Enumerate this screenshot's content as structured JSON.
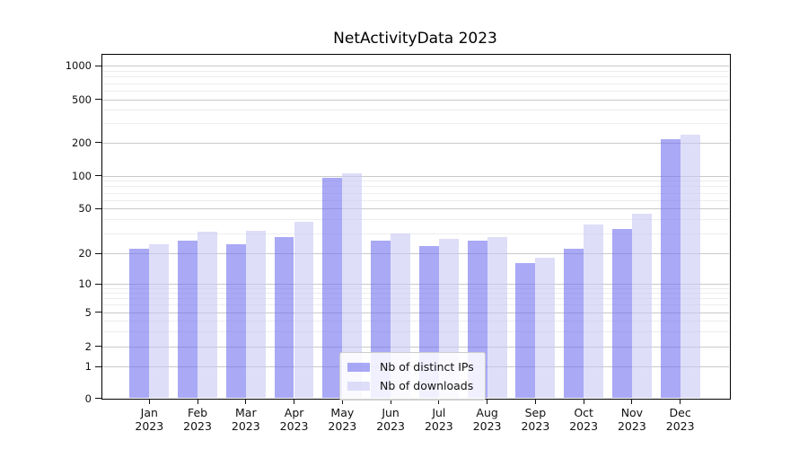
{
  "chart_data": {
    "type": "bar",
    "title": "NetActivityData 2023",
    "categories": [
      "Jan",
      "Feb",
      "Mar",
      "Apr",
      "May",
      "Jun",
      "Jul",
      "Aug",
      "Sep",
      "Oct",
      "Nov",
      "Dec"
    ],
    "category_year_line": "2023",
    "series": [
      {
        "name": "Nb of distinct IPs",
        "color": "#7070f0",
        "values": [
          22,
          26,
          24,
          28,
          95,
          26,
          23,
          26,
          16,
          22,
          33,
          215
        ]
      },
      {
        "name": "Nb of downloads",
        "color": "#c8c8f5",
        "values": [
          24,
          31,
          32,
          38,
          105,
          30,
          27,
          28,
          18,
          36,
          45,
          235
        ]
      }
    ],
    "yscale": "symlog",
    "yticks": [
      0,
      1,
      2,
      5,
      10,
      20,
      50,
      100,
      200,
      500,
      1000
    ],
    "ylim": [
      0,
      1300
    ],
    "xlabel": "",
    "ylabel": "",
    "grid": "major and minor horizontal gridlines",
    "legend_position": "lower center",
    "colors": {
      "major_grid": "#c9c9c9",
      "minor_grid": "#ededed",
      "axis": "#000000",
      "bar_rendered_ips": "#a9a9f6",
      "bar_rendered_downloads": "#dedef9"
    }
  }
}
